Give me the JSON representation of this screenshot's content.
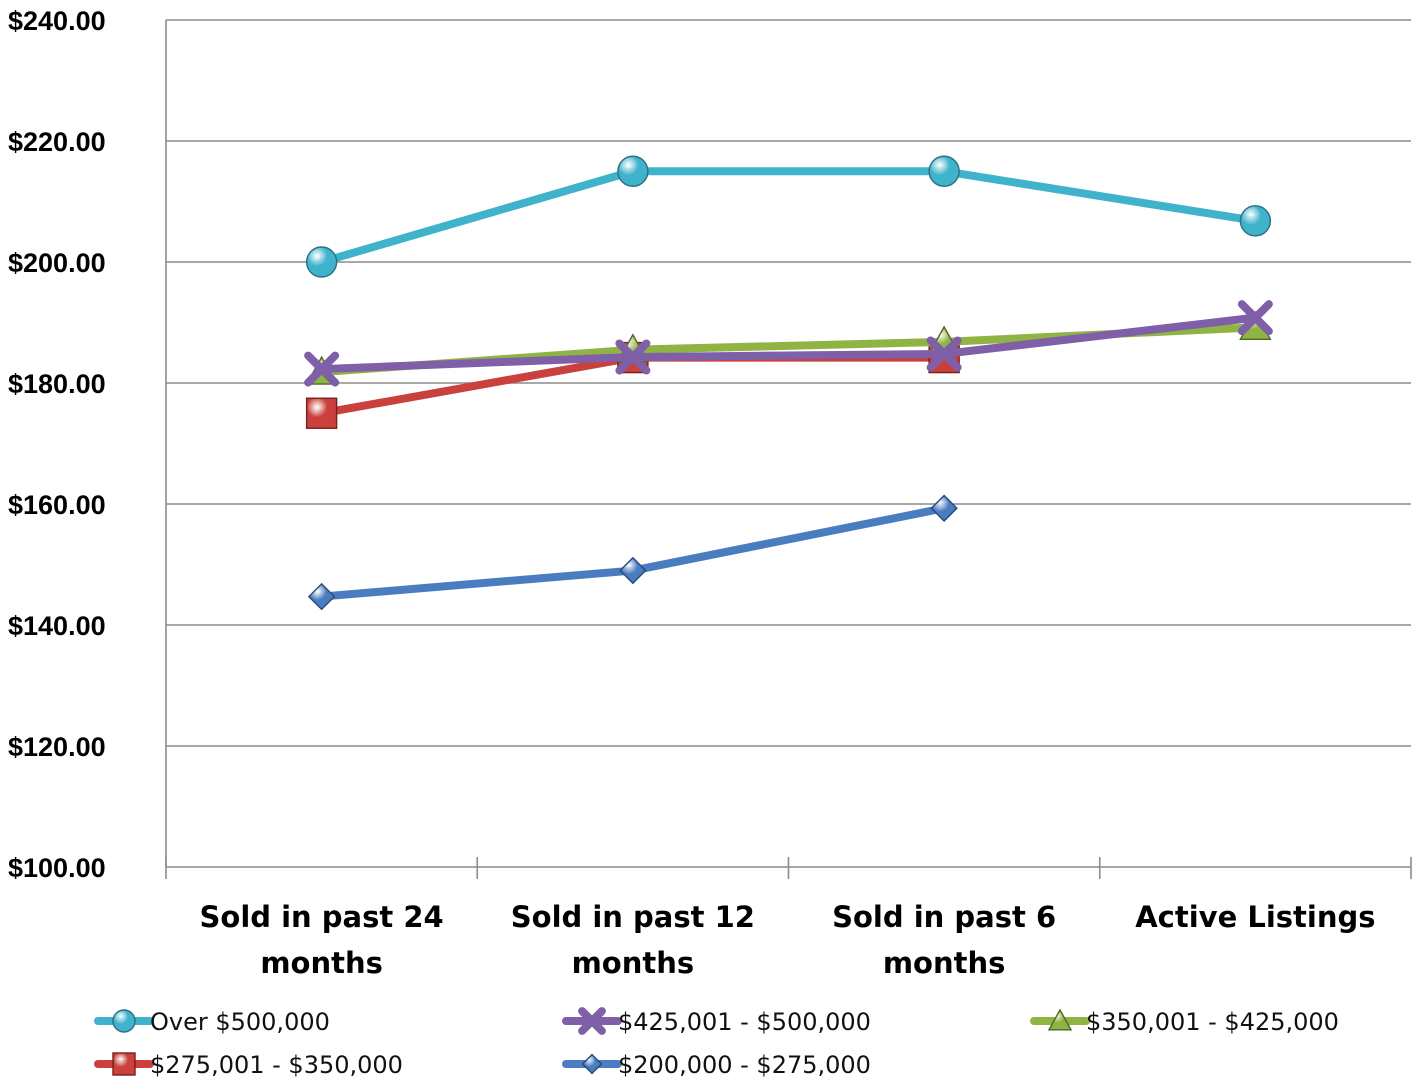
{
  "chart_data": {
    "type": "line",
    "categories": [
      [
        "Sold in past 24",
        "months"
      ],
      [
        "Sold in past 12",
        "months"
      ],
      [
        "Sold in past 6",
        "months"
      ],
      [
        "Active Listings"
      ]
    ],
    "y_ticks": [
      "$100.00",
      "$120.00",
      "$140.00",
      "$160.00",
      "$180.00",
      "$200.00",
      "$220.00",
      "$240.00"
    ],
    "ylim": [
      100,
      240
    ],
    "grid": true,
    "legend_position": "bottom",
    "series": [
      {
        "name": "Over $500,000",
        "color": "#3fb2cc",
        "marker": "circle",
        "values": [
          200.0,
          215.0,
          215.0,
          206.8
        ]
      },
      {
        "name": "$425,001 - $500,000",
        "color": "#7f5fa8",
        "marker": "x",
        "values": [
          182.3,
          184.3,
          184.8,
          190.8
        ]
      },
      {
        "name": "$350,001 - $425,000",
        "color": "#90b444",
        "marker": "triangle",
        "values": [
          181.8,
          185.5,
          186.8,
          189.2
        ]
      },
      {
        "name": "$275,001 - $350,000",
        "color": "#c9403c",
        "marker": "square",
        "values": [
          175.0,
          184.2,
          184.2,
          null
        ]
      },
      {
        "name": "$200,000 - $275,000",
        "color": "#4a7cc0",
        "marker": "diamond",
        "values": [
          144.7,
          149.0,
          159.3,
          null
        ]
      }
    ]
  }
}
